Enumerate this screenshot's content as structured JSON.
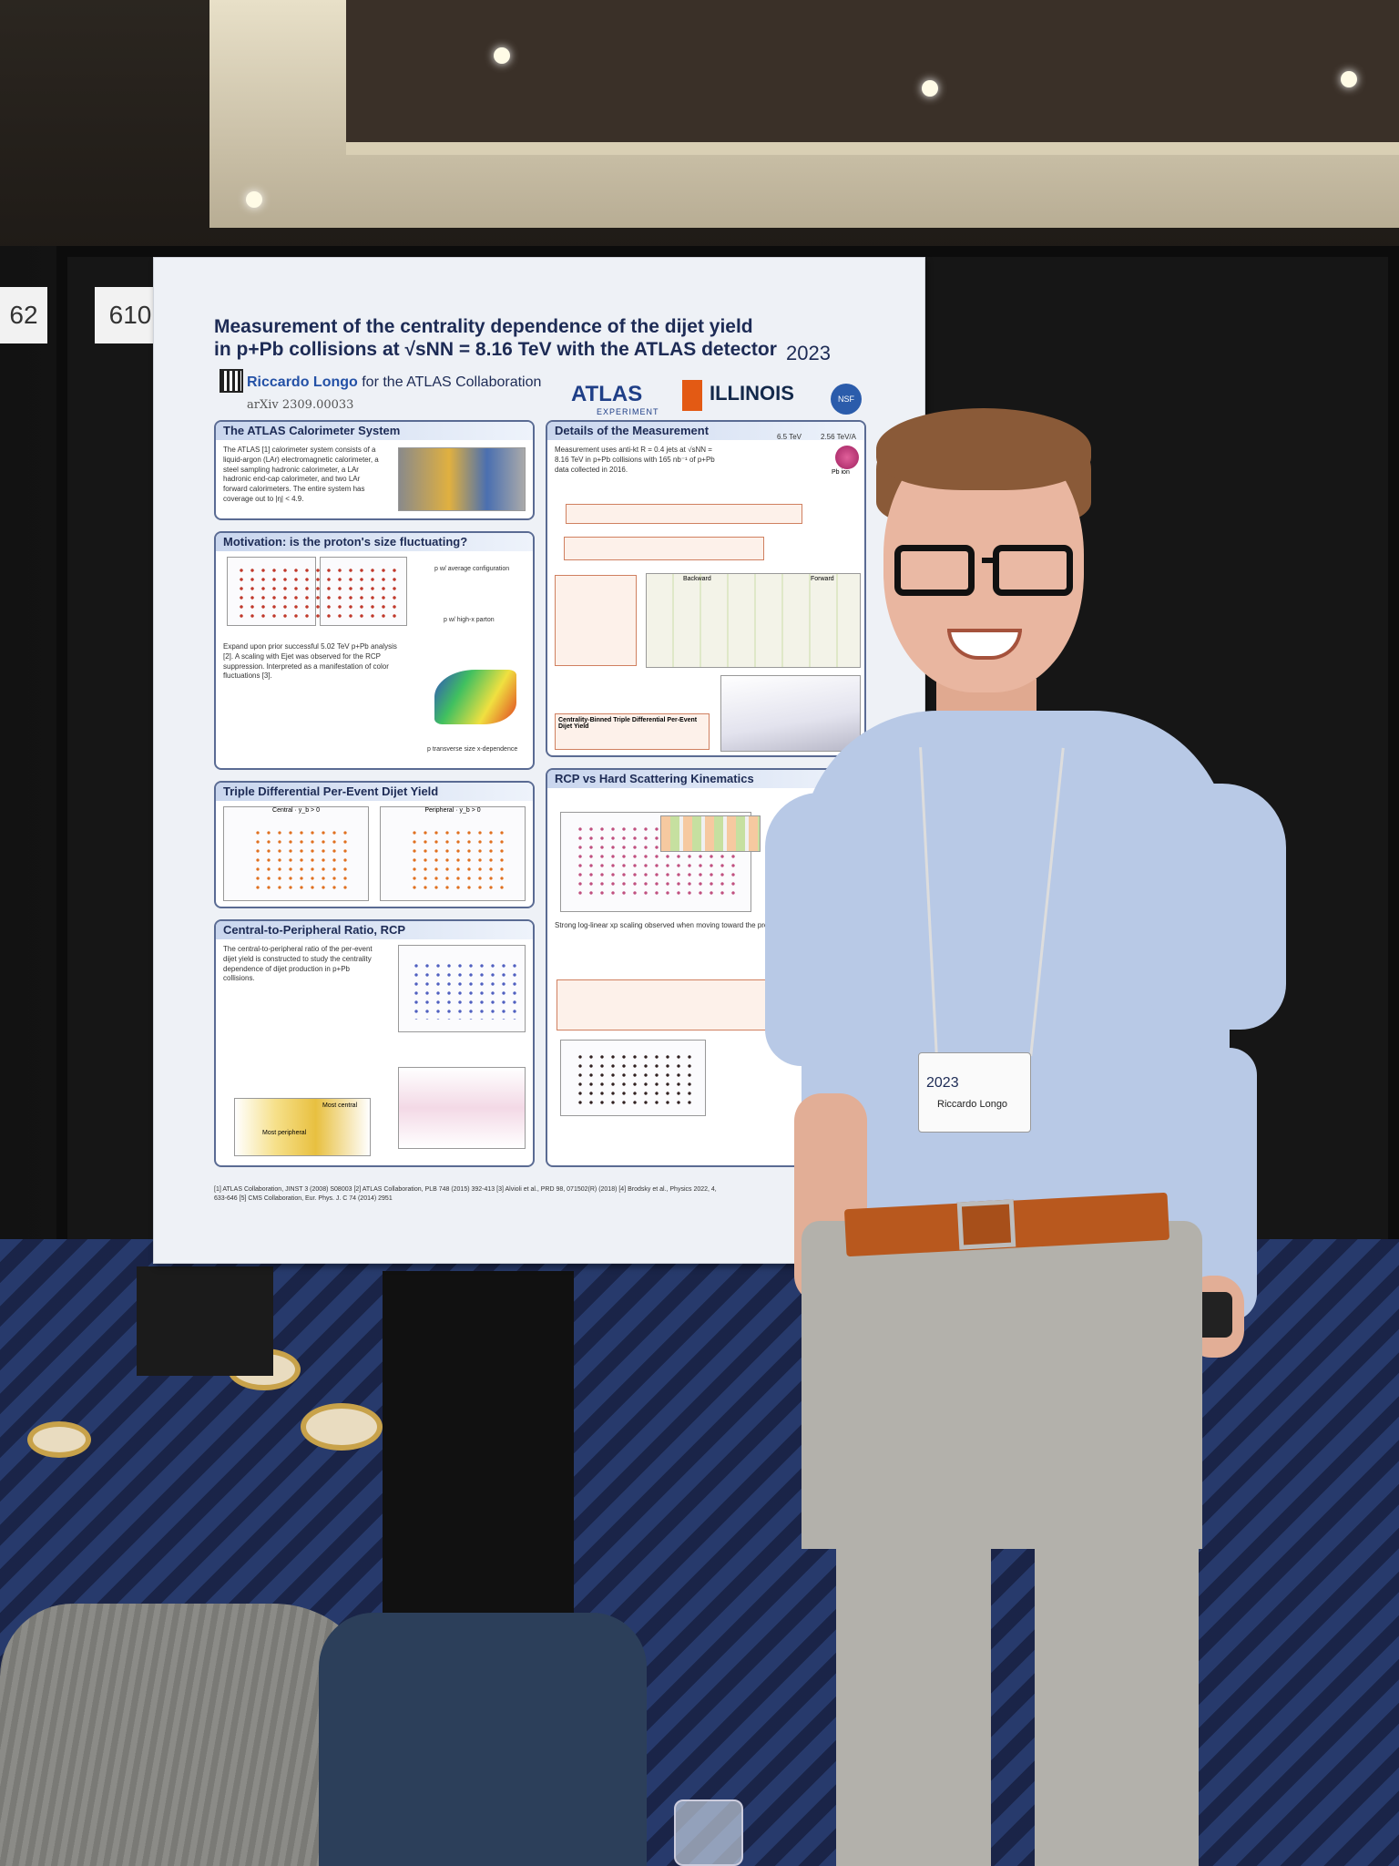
{
  "booth": {
    "left_number": "62",
    "right_number": "610"
  },
  "poster": {
    "title_line1": "Measurement of the centrality dependence of the dijet yield",
    "title_line2": "in p+Pb collisions at √sNN = 8.16 TeV with the ATLAS detector",
    "author": "Riccardo Longo",
    "collaboration": "for the ATLAS Collaboration",
    "arxiv": "arXiv 2309.00033",
    "year": "2023",
    "logos": {
      "atlas": "ATLAS",
      "atlas_sub": "EXPERIMENT",
      "illinois": "ILLINOIS",
      "nsf": "NSF"
    },
    "sections": {
      "calorimeter": {
        "heading": "The ATLAS Calorimeter System",
        "text": "The ATLAS [1] calorimeter system consists of a liquid-argon (LAr) electromagnetic calorimeter, a steel sampling hadronic calorimeter, a LAr hadronic end-cap calorimeter, and two LAr forward calorimeters. The entire system has coverage out to |η| < 4.9."
      },
      "motivation": {
        "heading": "Motivation: is the proton's size fluctuating?",
        "text": "Expand upon prior successful 5.02 TeV p+Pb analysis [2]. A scaling with Ejet was observed for the RCP suppression. Interpreted as a manifestation of color fluctuations [3].",
        "label_avg": "p w/ average configuration",
        "label_high": "p w/ high-x parton",
        "label_size": "p transverse size x-dependence"
      },
      "triple": {
        "heading": "Triple Differential Per-Event Dijet Yield",
        "left_plot": "Central · y_b > 0",
        "right_plot": "Peripheral · y_b > 0"
      },
      "rcp": {
        "heading": "Central-to-Peripheral Ratio, RCP",
        "text": "The central-to-peripheral ratio of the per-event dijet yield is constructed to study the centrality dependence of dijet production in p+Pb collisions.",
        "label_most_central": "Most central",
        "label_most_peripheral": "Most peripheral"
      },
      "details": {
        "heading": "Details of the Measurement",
        "text": "Measurement uses anti-kt R = 0.4 jets at √sNN = 8.16 TeV in p+Pb collisions with 165 nb⁻¹ of p+Pb data collected in 2016.",
        "beam_left": "6.5 TeV",
        "beam_right": "2.56 TeV/A",
        "pb_ion": "Pb ion",
        "yield_box": "Centrality-Binned Triple Differential Per-Event Dijet Yield",
        "backward": "Backward",
        "forward": "Forward"
      },
      "kinematics": {
        "heading": "RCP vs Hard Scattering Kinematics",
        "text": "Strong log-linear xp scaling observed when moving toward the proton dominance region."
      }
    },
    "references": "[1] ATLAS Collaboration, JINST 3 (2008) S08003   [2] ATLAS Collaboration, PLB 748 (2015) 392-413   [3] Alvioli et al., PRD 98, 071502(R) (2018)   [4] Brodsky et al., Physics 2022, 4, 633-646   [5] CMS Collaboration, Eur. Phys. J. C 74 (2014) 2951"
  },
  "badge": {
    "year": "2023",
    "name": "Riccardo Longo"
  },
  "colors": {
    "poster_bg": "#eef1f6",
    "panel_border": "#5a6b93",
    "title": "#1d2b55",
    "shirt": "#b8c9e6",
    "belt": "#b8581e",
    "carpet": "#1f2c55"
  },
  "icons": [
    "qr-code-icon",
    "atlas-logo-icon",
    "illinois-logo-icon",
    "nsf-logo-icon",
    "conference-logo-icon"
  ]
}
